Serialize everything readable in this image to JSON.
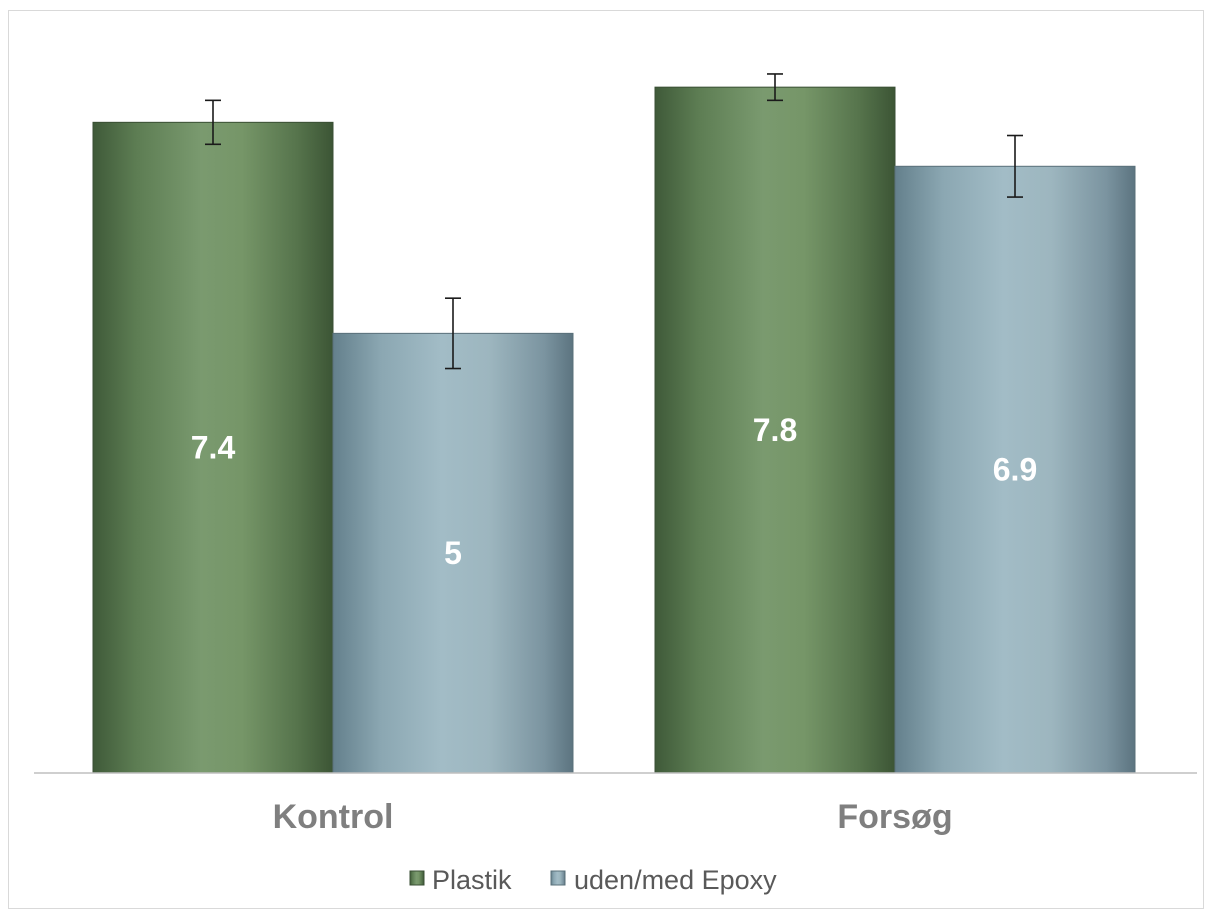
{
  "chart_data": {
    "type": "bar",
    "categories": [
      "Kontrol",
      "Forsøg"
    ],
    "series": [
      {
        "name": "Plastik",
        "values": [
          7.4,
          7.8
        ],
        "error": [
          0.25,
          0.15
        ],
        "color": "#6e8f63"
      },
      {
        "name": "uden/med Epoxy",
        "values": [
          5,
          6.9
        ],
        "error": [
          0.4,
          0.35
        ],
        "color": "#8fa9b3"
      }
    ],
    "data_labels": [
      [
        "7.4",
        "7.8"
      ],
      [
        "5",
        "6.9"
      ]
    ],
    "ylim": [
      0,
      8.45
    ],
    "grid": false,
    "legend_position": "bottom",
    "title": "",
    "xlabel": "",
    "ylabel": ""
  }
}
